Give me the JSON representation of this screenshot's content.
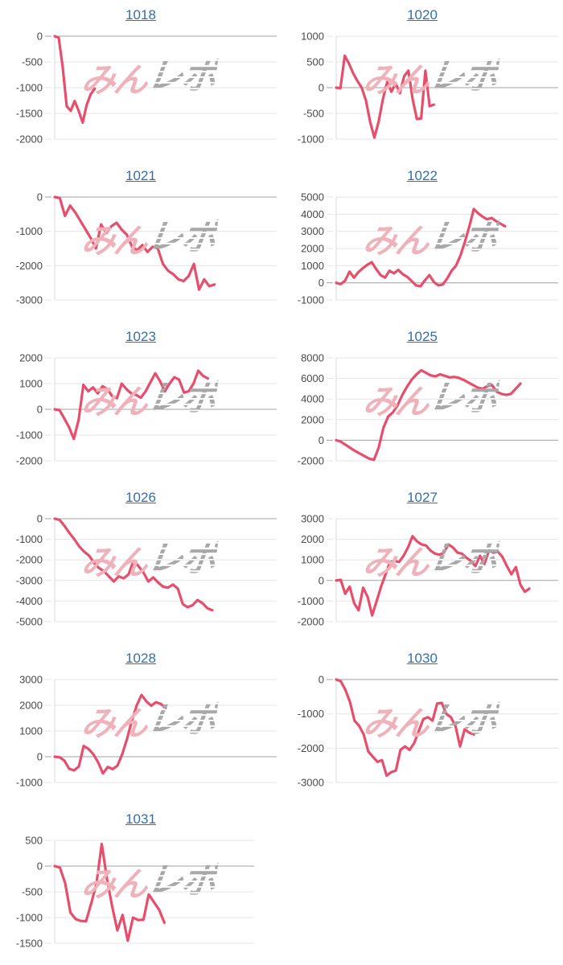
{
  "page": {
    "background": "#ffffff"
  },
  "watermark": {
    "pink_text": "みん",
    "gray_text": "レポ",
    "pink_color": "#f0b2ba",
    "gray_color": "#a8a8a8"
  },
  "styles": {
    "line_color": "#e64e6b",
    "grid_color": "#e4e4e4",
    "zero_line_color": "#a0a0a0",
    "axis_color": "#d9d9d9",
    "title_color": "#2f6fae",
    "tick_label_color": "#484848"
  },
  "chart_data": [
    {
      "type": "line",
      "title": "1018",
      "legend": "none",
      "grid": "horizontal",
      "ylim": [
        -2000,
        0
      ],
      "yticks": [
        0,
        -500,
        -1000,
        -1500,
        -2000
      ],
      "x_span_frac": 0.18,
      "values": [
        0,
        -30,
        -590,
        -1360,
        -1450,
        -1260,
        -1450,
        -1680,
        -1340,
        -1130,
        -1020
      ]
    },
    {
      "type": "line",
      "title": "1020",
      "legend": "none",
      "grid": "horizontal",
      "ylim": [
        -1000,
        1000
      ],
      "yticks": [
        1000,
        500,
        0,
        -500,
        -1000
      ],
      "x_span_frac": 0.44,
      "values": [
        0,
        -10,
        620,
        470,
        280,
        130,
        0,
        -250,
        -665,
        -970,
        -660,
        -220,
        110,
        -80,
        85,
        -110,
        220,
        330,
        -220,
        -610,
        -600,
        330,
        -360,
        -330
      ]
    },
    {
      "type": "line",
      "title": "1021",
      "legend": "none",
      "grid": "horizontal",
      "ylim": [
        -3000,
        0
      ],
      "yticks": [
        0,
        -1000,
        -2000,
        -3000
      ],
      "x_span_frac": 0.72,
      "values": [
        0,
        -30,
        -550,
        -250,
        -450,
        -700,
        -950,
        -1200,
        -1500,
        -800,
        -1050,
        -850,
        -750,
        -950,
        -1100,
        -1450,
        -1550,
        -1400,
        -1600,
        -1450,
        -1500,
        -1950,
        -2150,
        -2250,
        -2400,
        -2450,
        -2300,
        -1950,
        -2700,
        -2400,
        -2600,
        -2550
      ]
    },
    {
      "type": "line",
      "title": "1022",
      "legend": "none",
      "grid": "horizontal",
      "ylim": [
        -1000,
        5000
      ],
      "yticks": [
        5000,
        4000,
        3000,
        2000,
        1000,
        0,
        -1000
      ],
      "x_span_frac": 0.76,
      "values": [
        0,
        -80,
        120,
        650,
        300,
        620,
        850,
        1050,
        1200,
        800,
        450,
        300,
        700,
        550,
        750,
        500,
        350,
        100,
        -150,
        -200,
        150,
        450,
        50,
        -150,
        -100,
        250,
        700,
        1000,
        1600,
        2400,
        3300,
        4300,
        4050,
        3850,
        3700,
        3780,
        3600,
        3450,
        3300
      ]
    },
    {
      "type": "line",
      "title": "1023",
      "legend": "none",
      "grid": "horizontal",
      "ylim": [
        -2000,
        2000
      ],
      "yticks": [
        2000,
        1000,
        0,
        -1000,
        -2000
      ],
      "x_span_frac": 0.69,
      "values": [
        0,
        -30,
        -350,
        -700,
        -1150,
        -400,
        950,
        700,
        850,
        620,
        900,
        780,
        520,
        430,
        1000,
        780,
        620,
        560,
        450,
        700,
        1050,
        1400,
        1100,
        700,
        1000,
        1250,
        1150,
        650,
        700,
        1000,
        1500,
        1300,
        1200
      ]
    },
    {
      "type": "line",
      "title": "1025",
      "legend": "none",
      "grid": "horizontal",
      "ylim": [
        -2000,
        8000
      ],
      "yticks": [
        8000,
        6000,
        4000,
        2000,
        0,
        -2000
      ],
      "x_span_frac": 0.83,
      "values": [
        0,
        -150,
        -450,
        -750,
        -1050,
        -1300,
        -1550,
        -1800,
        -1900,
        -700,
        1200,
        2300,
        2700,
        3400,
        4400,
        5200,
        5900,
        6400,
        6800,
        6550,
        6300,
        6200,
        6400,
        6250,
        6100,
        6150,
        6050,
        5850,
        5600,
        5350,
        5100,
        5000,
        5250,
        5350,
        4700,
        4500,
        4400,
        4500,
        5000,
        5500
      ]
    },
    {
      "type": "line",
      "title": "1026",
      "legend": "none",
      "grid": "horizontal",
      "ylim": [
        -5000,
        0
      ],
      "yticks": [
        0,
        -1000,
        -2000,
        -3000,
        -4000,
        -5000
      ],
      "x_span_frac": 0.71,
      "values": [
        0,
        -60,
        -350,
        -700,
        -1000,
        -1350,
        -1600,
        -1800,
        -2150,
        -2400,
        -2550,
        -2800,
        -3050,
        -2800,
        -2900,
        -2700,
        -2050,
        -2300,
        -2600,
        -3050,
        -2850,
        -3100,
        -3300,
        -3350,
        -3200,
        -3400,
        -4150,
        -4300,
        -4200,
        -3950,
        -4100,
        -4350,
        -4450
      ]
    },
    {
      "type": "line",
      "title": "1027",
      "legend": "none",
      "grid": "horizontal",
      "ylim": [
        -2000,
        3000
      ],
      "yticks": [
        3000,
        2000,
        1000,
        0,
        -1000,
        -2000
      ],
      "x_span_frac": 0.87,
      "values": [
        0,
        30,
        -650,
        -300,
        -1100,
        -1450,
        -350,
        -800,
        -1700,
        -1000,
        -300,
        300,
        900,
        950,
        900,
        1200,
        1600,
        2150,
        1900,
        1750,
        1700,
        1450,
        1300,
        1250,
        1350,
        1750,
        1600,
        1350,
        1300,
        1100,
        950,
        700,
        1200,
        800,
        1450,
        1350,
        1400,
        1150,
        700,
        300,
        650,
        -200,
        -550,
        -400
      ]
    },
    {
      "type": "line",
      "title": "1028",
      "legend": "none",
      "grid": "horizontal",
      "ylim": [
        -1000,
        3000
      ],
      "yticks": [
        3000,
        2000,
        1000,
        0,
        -1000
      ],
      "x_span_frac": 0.5,
      "values": [
        0,
        -20,
        -150,
        -470,
        -530,
        -380,
        420,
        300,
        100,
        -220,
        -650,
        -400,
        -480,
        -350,
        100,
        700,
        1400,
        2000,
        2400,
        2150,
        1980,
        2120,
        2050,
        1900
      ]
    },
    {
      "type": "line",
      "title": "1030",
      "legend": "none",
      "grid": "horizontal",
      "ylim": [
        -3000,
        0
      ],
      "yticks": [
        0,
        -1000,
        -2000,
        -3000
      ],
      "x_span_frac": 0.62,
      "values": [
        0,
        -50,
        -300,
        -650,
        -1200,
        -1350,
        -1600,
        -2100,
        -2250,
        -2400,
        -2350,
        -2800,
        -2700,
        -2650,
        -2050,
        -1950,
        -2050,
        -1850,
        -1500,
        -1150,
        -1100,
        -1200,
        -700,
        -680,
        -1000,
        -1100,
        -1350,
        -1950,
        -1450,
        -1550,
        -1600
      ]
    },
    {
      "type": "line",
      "title": "1031",
      "legend": "none",
      "grid": "horizontal",
      "ylim": [
        -1500,
        500
      ],
      "yticks": [
        500,
        0,
        -500,
        -1000,
        -1500
      ],
      "x_span_frac": 0.55,
      "plot_right": 316,
      "values": [
        0,
        -30,
        -330,
        -900,
        -1030,
        -1065,
        -1070,
        -720,
        -330,
        430,
        -250,
        -780,
        -1250,
        -950,
        -1450,
        -1000,
        -1050,
        -1040,
        -550,
        -700,
        -850,
        -1100
      ]
    }
  ]
}
